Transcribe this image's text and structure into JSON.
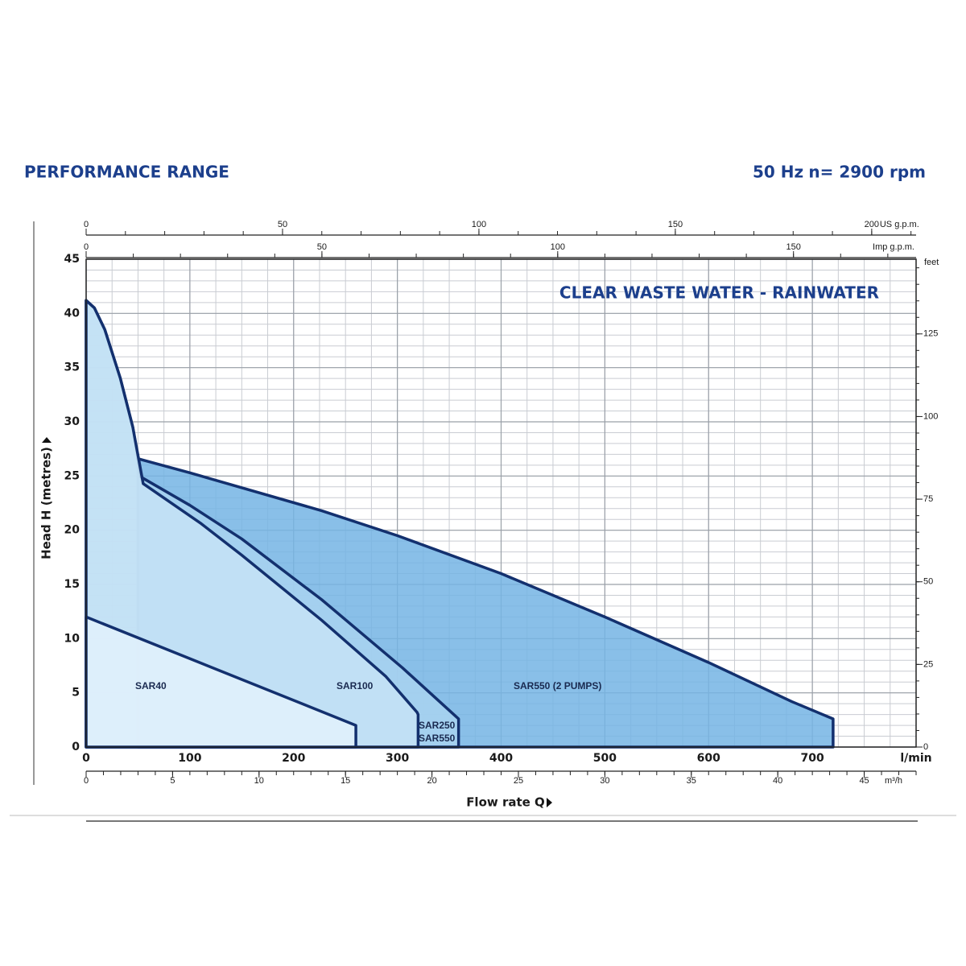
{
  "chart_data": {
    "type": "area",
    "title": "PERFORMANCE RANGE",
    "frequency": "50 Hz",
    "speed": "n= 2900 rpm",
    "annotation": "CLEAR WASTE WATER - RAINWATER",
    "xlabel": "Flow rate Q",
    "ylabel": "Head H (metres)",
    "x_unit": "l/min",
    "xlim": [
      0,
      800
    ],
    "xticks": [
      0,
      100,
      200,
      300,
      400,
      500,
      600,
      700
    ],
    "ylim": [
      0,
      45
    ],
    "yticks": [
      0,
      5,
      10,
      15,
      20,
      25,
      30,
      35,
      40,
      45
    ],
    "y2_unit": "feet",
    "y2lim": [
      0,
      147.6
    ],
    "y2ticks": [
      0,
      25,
      50,
      75,
      100,
      125
    ],
    "y2_minor_step": 5,
    "grid": true,
    "minor_grid": {
      "x_step": 25,
      "y_step": 1
    },
    "extra_axes": [
      {
        "position": "top",
        "unit": "US g.p.m.",
        "lim": [
          0,
          211.3
        ],
        "ticks": [
          0,
          50,
          100,
          150,
          200
        ],
        "minor_step": 10
      },
      {
        "position": "top",
        "unit": "Imp g.p.m.",
        "lim": [
          0,
          176
        ],
        "ticks": [
          0,
          50,
          100,
          150
        ],
        "minor_step": 10
      },
      {
        "position": "bottom",
        "unit": "m³/h",
        "lim": [
          0,
          48
        ],
        "ticks": [
          0,
          5,
          10,
          15,
          20,
          25,
          30,
          35,
          40,
          45
        ],
        "minor_step": 1
      }
    ],
    "series": [
      {
        "name": "SAR550 (2 PUMPS)",
        "color": "#74b4e4",
        "x": [
          50,
          100,
          227,
          300,
          400,
          500,
          600,
          680,
          720,
          720
        ],
        "y": [
          26.6,
          25.3,
          21.8,
          19.5,
          16,
          12,
          7.8,
          4.2,
          2.6,
          0
        ]
      },
      {
        "name": "SAR250",
        "color": "#a9d2f0",
        "x": [
          0,
          8,
          18,
          33,
          45,
          53,
          100,
          150,
          227,
          305,
          344,
          359,
          359
        ],
        "y": [
          41.2,
          40.5,
          38.5,
          34,
          29.5,
          24.9,
          22.3,
          19.2,
          13.6,
          7.3,
          3.9,
          2.6,
          0
        ]
      },
      {
        "name": "SAR100",
        "color": "#c7e3f6",
        "x": [
          0,
          8,
          18,
          33,
          45,
          55,
          111,
          150,
          227,
          289,
          319,
          320,
          320
        ],
        "y": [
          41.2,
          40.5,
          38.5,
          34,
          29.5,
          24.3,
          20.6,
          17.7,
          11.7,
          6.5,
          3.2,
          3,
          0
        ]
      },
      {
        "name": "SAR40",
        "color": "#e2f1fc",
        "x": [
          0,
          260,
          260
        ],
        "y": [
          12,
          2,
          0
        ]
      }
    ],
    "series_note": "SAR550"
  }
}
